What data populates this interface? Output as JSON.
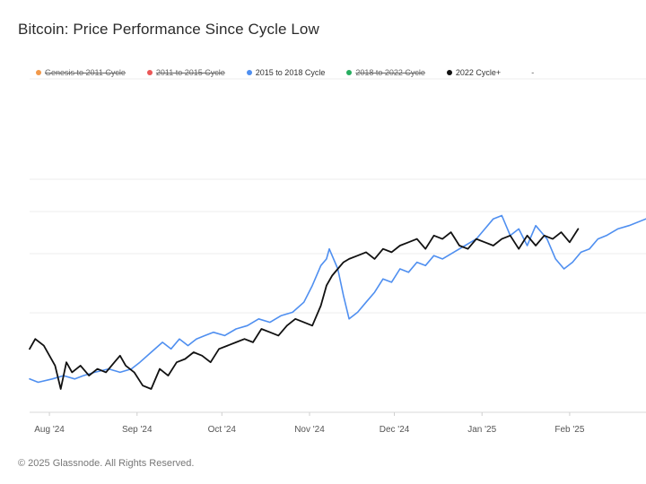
{
  "title": "Bitcoin: Price Performance Since Cycle Low",
  "footer": "© 2025 Glassnode. All Rights Reserved.",
  "legend": {
    "items": [
      {
        "label": "Genesis to 2011 Cycle",
        "color": "#f2994a",
        "disabled": true
      },
      {
        "label": "2011 to 2015 Cycle",
        "color": "#eb5757",
        "disabled": true
      },
      {
        "label": "2015 to 2018 Cycle",
        "color": "#4f8ff0",
        "disabled": false
      },
      {
        "label": "2018 to 2022 Cycle",
        "color": "#27ae60",
        "disabled": true
      },
      {
        "label": "2022 Cycle+",
        "color": "#111111",
        "disabled": false
      }
    ],
    "trailing": "-"
  },
  "chart_data": {
    "type": "line",
    "title": "Bitcoin: Price Performance Since Cycle Low",
    "x_range": [
      "2024-07-25",
      "2025-02-28"
    ],
    "y_range": [
      0,
      100
    ],
    "grid": "horizontal",
    "x_ticks": [
      {
        "label": "Aug '24",
        "date": "2024-08-01"
      },
      {
        "label": "Sep '24",
        "date": "2024-09-01"
      },
      {
        "label": "Oct '24",
        "date": "2024-10-01"
      },
      {
        "label": "Nov '24",
        "date": "2024-11-01"
      },
      {
        "label": "Dec '24",
        "date": "2024-12-01"
      },
      {
        "label": "Jan '25",
        "date": "2025-01-01"
      },
      {
        "label": "Feb '25",
        "date": "2025-02-01"
      }
    ],
    "series": [
      {
        "name": "2015 to 2018 Cycle",
        "color": "#4f8ff0",
        "dates": [
          "2024-07-25",
          "2024-07-28",
          "2024-08-02",
          "2024-08-06",
          "2024-08-10",
          "2024-08-13",
          "2024-08-17",
          "2024-08-22",
          "2024-08-26",
          "2024-08-30",
          "2024-09-02",
          "2024-09-06",
          "2024-09-10",
          "2024-09-13",
          "2024-09-16",
          "2024-09-19",
          "2024-09-22",
          "2024-09-25",
          "2024-09-28",
          "2024-10-02",
          "2024-10-06",
          "2024-10-10",
          "2024-10-14",
          "2024-10-18",
          "2024-10-22",
          "2024-10-26",
          "2024-10-30",
          "2024-11-02",
          "2024-11-05",
          "2024-11-07",
          "2024-11-08",
          "2024-11-11",
          "2024-11-13",
          "2024-11-15",
          "2024-11-18",
          "2024-11-21",
          "2024-11-24",
          "2024-11-27",
          "2024-11-30",
          "2024-12-03",
          "2024-12-06",
          "2024-12-09",
          "2024-12-12",
          "2024-12-15",
          "2024-12-18",
          "2024-12-22",
          "2024-12-26",
          "2024-12-30",
          "2025-01-02",
          "2025-01-05",
          "2025-01-08",
          "2025-01-11",
          "2025-01-14",
          "2025-01-17",
          "2025-01-20",
          "2025-01-24",
          "2025-01-27",
          "2025-01-30",
          "2025-02-02",
          "2025-02-05",
          "2025-02-08",
          "2025-02-11",
          "2025-02-14",
          "2025-02-18",
          "2025-02-22",
          "2025-02-28"
        ],
        "values": [
          10,
          9,
          10,
          11,
          10,
          11,
          12,
          13,
          12,
          13,
          15,
          18,
          21,
          19,
          22,
          20,
          22,
          23,
          24,
          23,
          25,
          26,
          28,
          27,
          29,
          30,
          33,
          38,
          44,
          46,
          49,
          43,
          35,
          28,
          30,
          33,
          36,
          40,
          39,
          43,
          42,
          45,
          44,
          47,
          46,
          48,
          50,
          52,
          55,
          58,
          59,
          53,
          55,
          50,
          56,
          52,
          46,
          43,
          45,
          48,
          49,
          52,
          53,
          55,
          56,
          58
        ]
      },
      {
        "name": "2022 Cycle+",
        "color": "#111111",
        "dates": [
          "2024-07-25",
          "2024-07-27",
          "2024-07-30",
          "2024-08-03",
          "2024-08-05",
          "2024-08-07",
          "2024-08-09",
          "2024-08-12",
          "2024-08-15",
          "2024-08-18",
          "2024-08-21",
          "2024-08-24",
          "2024-08-26",
          "2024-08-28",
          "2024-08-31",
          "2024-09-03",
          "2024-09-06",
          "2024-09-09",
          "2024-09-12",
          "2024-09-15",
          "2024-09-18",
          "2024-09-21",
          "2024-09-24",
          "2024-09-27",
          "2024-09-30",
          "2024-10-03",
          "2024-10-06",
          "2024-10-09",
          "2024-10-12",
          "2024-10-15",
          "2024-10-18",
          "2024-10-21",
          "2024-10-24",
          "2024-10-27",
          "2024-10-30",
          "2024-11-02",
          "2024-11-05",
          "2024-11-07",
          "2024-11-09",
          "2024-11-11",
          "2024-11-13",
          "2024-11-15",
          "2024-11-18",
          "2024-11-21",
          "2024-11-24",
          "2024-11-27",
          "2024-11-30",
          "2024-12-03",
          "2024-12-06",
          "2024-12-09",
          "2024-12-12",
          "2024-12-15",
          "2024-12-18",
          "2024-12-21",
          "2024-12-24",
          "2024-12-27",
          "2024-12-30",
          "2025-01-02",
          "2025-01-05",
          "2025-01-08",
          "2025-01-11",
          "2025-01-14",
          "2025-01-17",
          "2025-01-20",
          "2025-01-23",
          "2025-01-26",
          "2025-01-29",
          "2025-02-01",
          "2025-02-04"
        ],
        "values": [
          19,
          22,
          20,
          14,
          7,
          15,
          12,
          14,
          11,
          13,
          12,
          15,
          17,
          14,
          12,
          8,
          7,
          13,
          11,
          15,
          16,
          18,
          17,
          15,
          19,
          20,
          21,
          22,
          21,
          25,
          24,
          23,
          26,
          28,
          27,
          26,
          32,
          38,
          41,
          43,
          45,
          46,
          47,
          48,
          46,
          49,
          48,
          50,
          51,
          52,
          49,
          53,
          52,
          54,
          50,
          49,
          52,
          51,
          50,
          52,
          53,
          49,
          53,
          50,
          53,
          52,
          54,
          51,
          55
        ]
      }
    ]
  }
}
